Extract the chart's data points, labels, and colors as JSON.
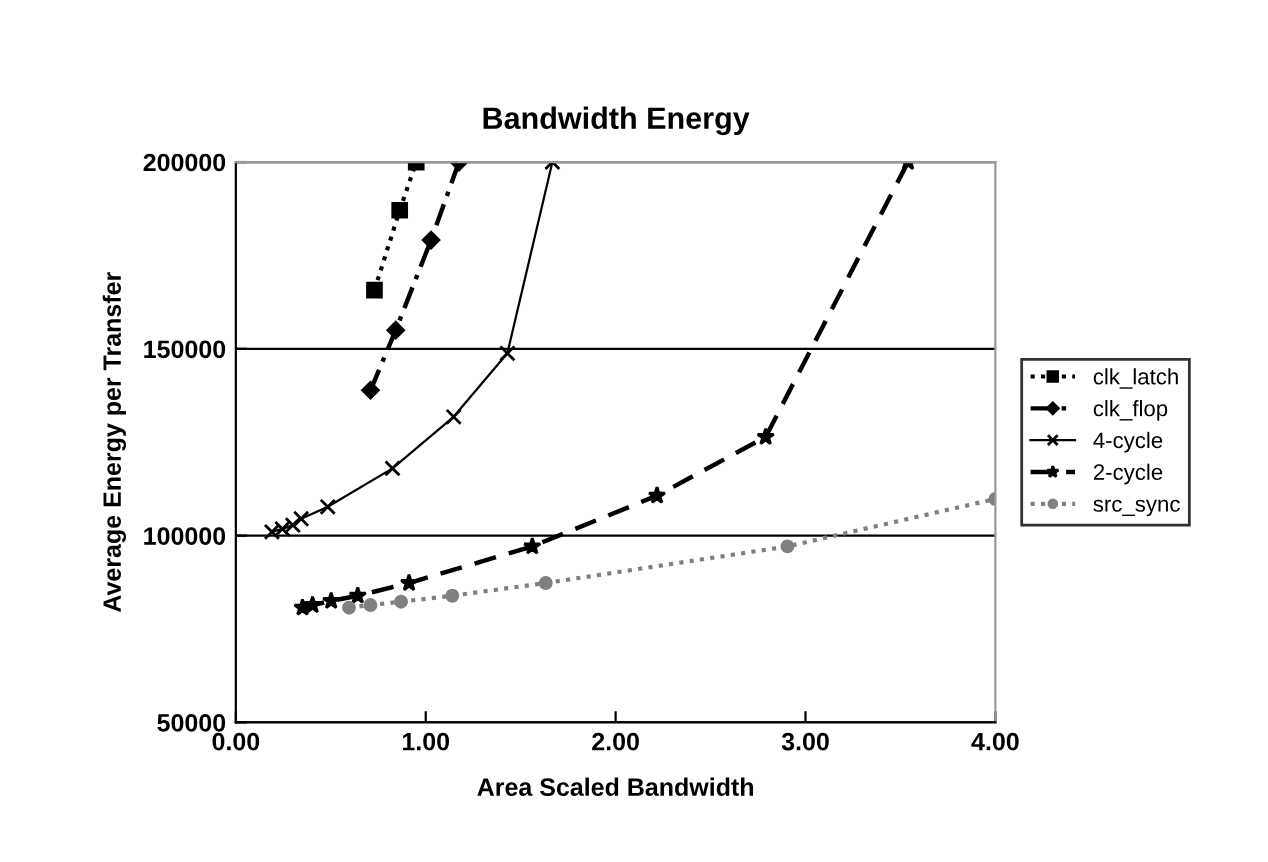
{
  "chart_data": {
    "type": "line",
    "title": "Bandwidth Energy",
    "xlabel": "Area Scaled Bandwidth",
    "ylabel": "Average Energy per Transfer",
    "xlim": [
      0,
      4
    ],
    "ylim": [
      50000,
      200000
    ],
    "xticks": [
      {
        "value": 0,
        "label": "0.00"
      },
      {
        "value": 1,
        "label": "1.00"
      },
      {
        "value": 2,
        "label": "2.00"
      },
      {
        "value": 3,
        "label": "3.00"
      },
      {
        "value": 4,
        "label": "4.00"
      }
    ],
    "yticks": [
      50000,
      100000,
      150000,
      200000
    ],
    "grid": "y",
    "legend": "right",
    "series": [
      {
        "name": "clk_latch",
        "color": "#000000",
        "marker": "square",
        "line_style": "dotted",
        "x": [
          0.73,
          0.863,
          0.95
        ],
        "values": [
          165700,
          187100,
          200000
        ]
      },
      {
        "name": "clk_flop",
        "color": "#000000",
        "marker": "diamond",
        "line_style": "dashdot",
        "x": [
          0.709,
          0.842,
          1.028,
          1.175
        ],
        "values": [
          138900,
          155000,
          179100,
          200000
        ]
      },
      {
        "name": "4-cycle",
        "color": "#000000",
        "marker": "cross",
        "line_style": "solid",
        "x": [
          0.19,
          0.245,
          0.3,
          0.344,
          0.484,
          0.825,
          1.147,
          1.43,
          1.667
        ],
        "values": [
          101000,
          101800,
          102800,
          104500,
          107700,
          118000,
          131800,
          148800,
          200000
        ]
      },
      {
        "name": "2-cycle",
        "color": "#000000",
        "marker": "star",
        "line_style": "dashed",
        "x": [
          0.351,
          0.404,
          0.502,
          0.642,
          0.912,
          1.561,
          2.218,
          2.79,
          3.54
        ],
        "values": [
          80700,
          81400,
          82500,
          83900,
          87300,
          97100,
          110700,
          126400,
          200000
        ]
      },
      {
        "name": "src_sync",
        "color": "#808080",
        "marker": "circle",
        "line_style": "dotted",
        "x": [
          0.596,
          0.709,
          0.87,
          1.14,
          1.632,
          2.905,
          4.0
        ],
        "values": [
          80700,
          81400,
          82300,
          83900,
          87300,
          97100,
          109800
        ]
      }
    ]
  }
}
